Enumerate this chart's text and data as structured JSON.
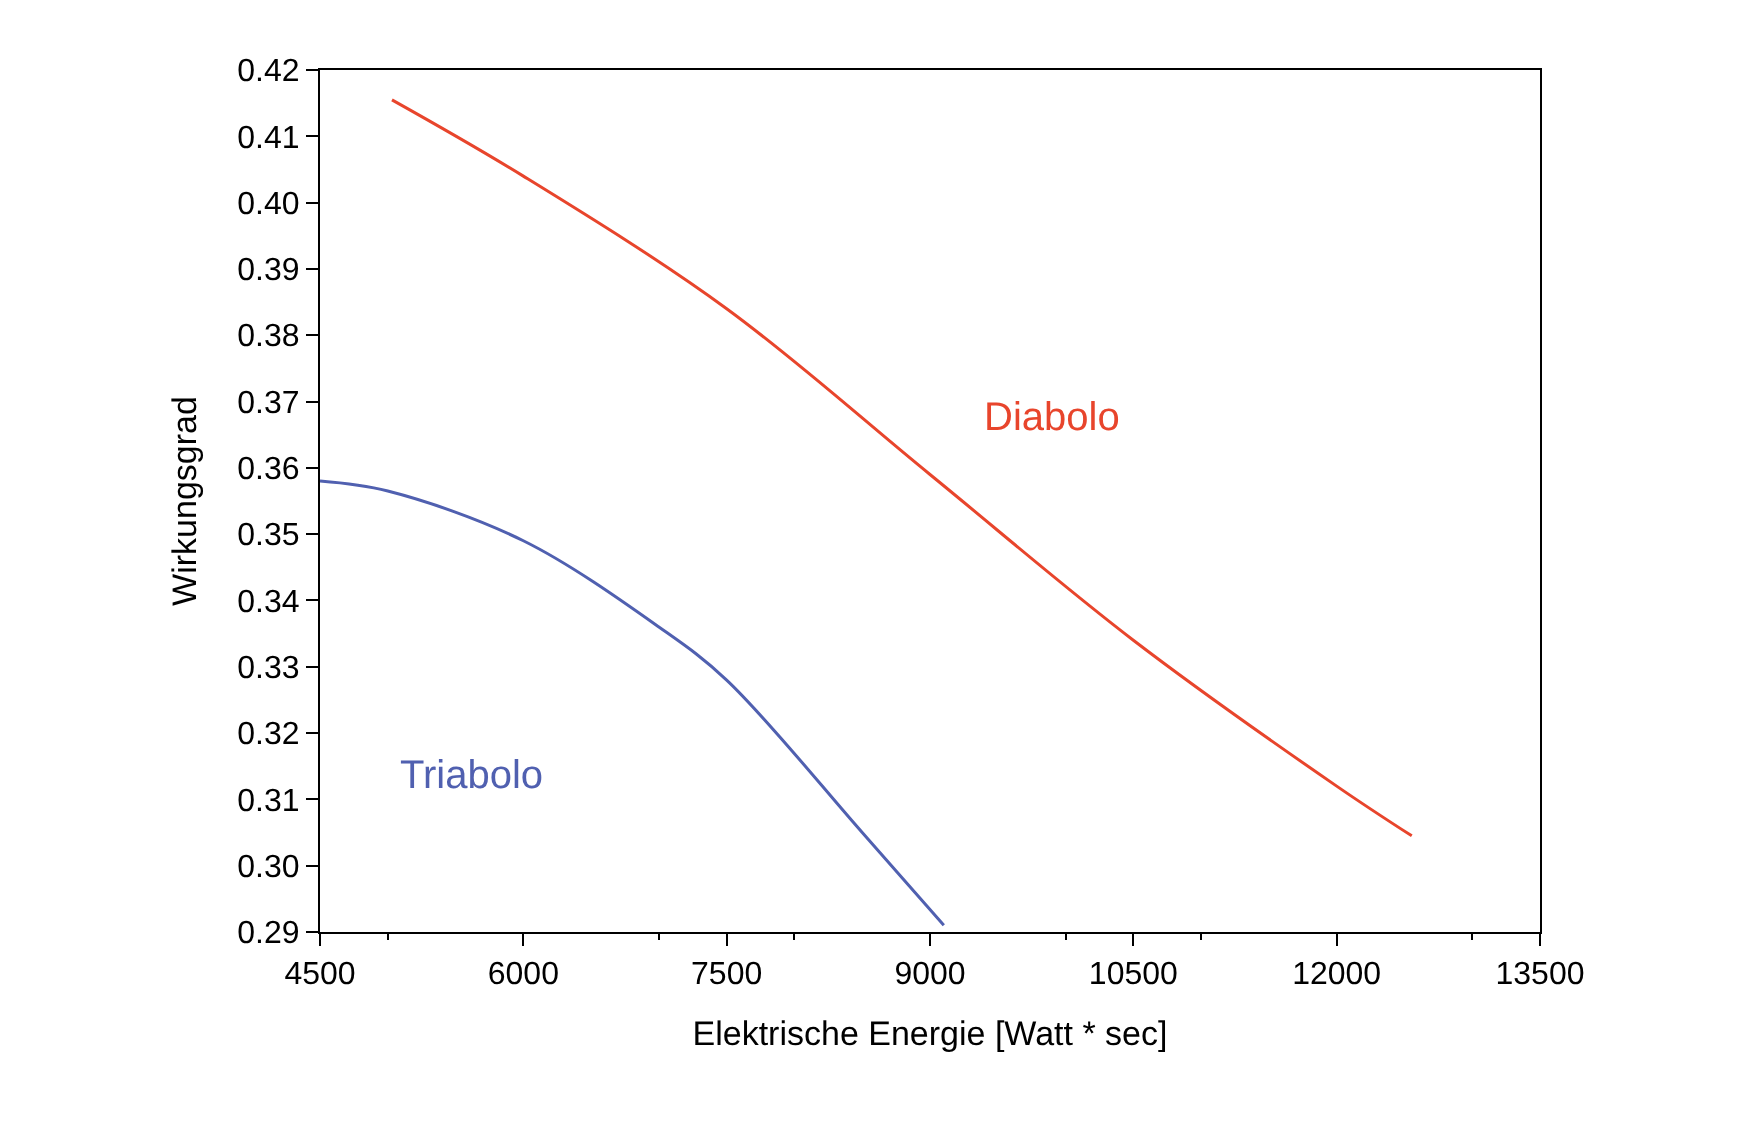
{
  "chart_data": {
    "type": "line",
    "xlabel": "Elektrische Energie [Watt * sec]",
    "ylabel": "Wirkungsgrad",
    "xlim": [
      4500,
      13500
    ],
    "xticks": [
      4500,
      6000,
      7500,
      9000,
      10500,
      12000,
      13500
    ],
    "ylim": [
      0.29,
      0.42
    ],
    "yticks": [
      {
        "value": 0.29,
        "label": "0.29"
      },
      {
        "value": 0.3,
        "label": "0.30"
      },
      {
        "value": 0.31,
        "label": "0.31"
      },
      {
        "value": 0.32,
        "label": "0.32"
      },
      {
        "value": 0.33,
        "label": "0.33"
      },
      {
        "value": 0.34,
        "label": "0.34"
      },
      {
        "value": 0.35,
        "label": "0.35"
      },
      {
        "value": 0.36,
        "label": "0.36"
      },
      {
        "value": 0.37,
        "label": "0.37"
      },
      {
        "value": 0.38,
        "label": "0.38"
      },
      {
        "value": 0.39,
        "label": "0.39"
      },
      {
        "value": 0.4,
        "label": "0.40"
      },
      {
        "value": 0.41,
        "label": "0.41"
      },
      {
        "value": 0.42,
        "label": "0.42"
      }
    ],
    "legend": false,
    "marker": "none",
    "line_style": "solid",
    "series": [
      {
        "name": "Diabolo",
        "color": "#e8452c",
        "x": [
          5031,
          6000,
          7500,
          9000,
          10500,
          12000,
          12554
        ],
        "values": [
          0.4155,
          0.404,
          0.384,
          0.359,
          0.334,
          0.312,
          0.3045
        ]
      },
      {
        "name": "Triabolo",
        "color": "#5060b0",
        "x": [
          4500,
          5000,
          6000,
          7000,
          7500,
          8500,
          9102
        ],
        "values": [
          0.358,
          0.3565,
          0.349,
          0.336,
          0.328,
          0.305,
          0.291
        ]
      }
    ]
  }
}
